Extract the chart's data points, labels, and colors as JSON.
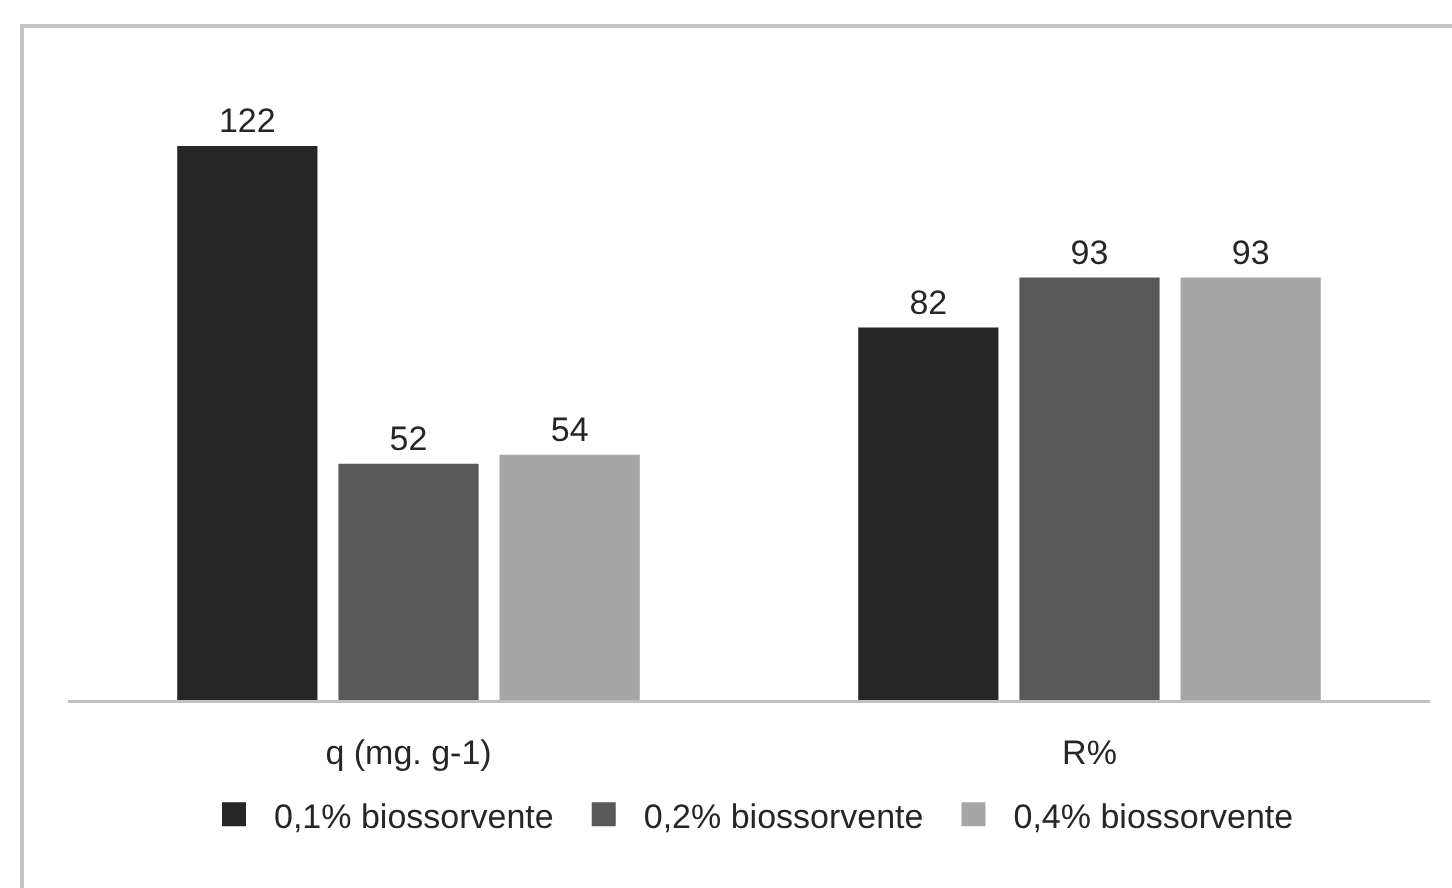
{
  "chart_data": {
    "type": "bar",
    "categories": [
      "q (mg. g-1)",
      "R%"
    ],
    "series": [
      {
        "name": "0,1% biossorvente",
        "color": "#262626",
        "values": [
          122,
          82
        ]
      },
      {
        "name": "0,2% biossorvente",
        "color": "#595959",
        "values": [
          52,
          93
        ]
      },
      {
        "name": "0,4% biossorvente",
        "color": "#a6a6a6",
        "values": [
          54,
          93
        ]
      }
    ],
    "data_labels": true,
    "legend": "bottom",
    "tick_labels": "x"
  }
}
